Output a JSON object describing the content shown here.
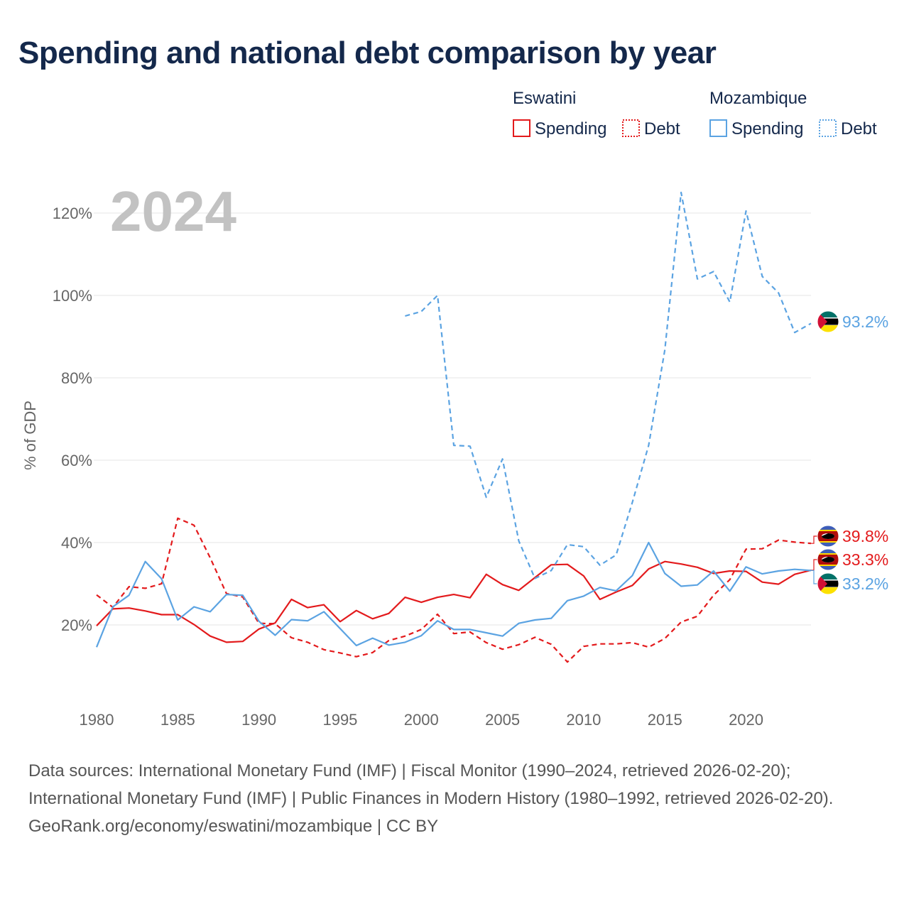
{
  "title": "Spending and national debt comparison by year",
  "year_display": "2024",
  "legend": {
    "groups": [
      {
        "country": "Eswatini",
        "color": "#e31a1c",
        "items": [
          "Spending",
          "Debt"
        ]
      },
      {
        "country": "Mozambique",
        "color": "#5ba3e2",
        "items": [
          "Spending",
          "Debt"
        ]
      }
    ]
  },
  "chart_data": {
    "type": "line",
    "ylabel": "% of GDP",
    "xlabel": "",
    "xlim": [
      1980,
      2024
    ],
    "ylim": [
      0,
      130
    ],
    "x_ticks": [
      1980,
      1985,
      1990,
      1995,
      2000,
      2005,
      2010,
      2015,
      2020
    ],
    "y_ticks": [
      20,
      40,
      60,
      80,
      100,
      120
    ],
    "y_tick_labels": [
      "20%",
      "40%",
      "60%",
      "80%",
      "100%",
      "120%"
    ],
    "series": [
      {
        "name": "Eswatini Spending",
        "country": "Eswatini",
        "metric": "Spending",
        "color": "#e31a1c",
        "dash": "solid",
        "start_year": 1980,
        "values": [
          19.8,
          23.9,
          24.1,
          23.4,
          22.5,
          22.5,
          20.1,
          17.3,
          15.8,
          16.0,
          19.0,
          20.5,
          26.2,
          24.2,
          24.9,
          20.8,
          23.5,
          21.5,
          22.8,
          26.7,
          25.5,
          26.7,
          27.4,
          26.6,
          32.3,
          29.8,
          28.4,
          31.5,
          34.6,
          34.7,
          31.9,
          26.2,
          28.0,
          29.6,
          33.6,
          35.4,
          34.8,
          34.0,
          32.5,
          33.1,
          33.0,
          30.4,
          29.9,
          32.3,
          33.3
        ],
        "end_label": "33.3%"
      },
      {
        "name": "Eswatini Debt",
        "country": "Eswatini",
        "metric": "Debt",
        "color": "#e31a1c",
        "dash": "dashed",
        "start_year": 1980,
        "values": [
          27.3,
          24.3,
          29.3,
          28.9,
          30.0,
          45.9,
          44.2,
          36.3,
          27.6,
          26.8,
          20.4,
          20.3,
          16.9,
          15.8,
          14.0,
          13.2,
          12.3,
          13.3,
          16.2,
          17.3,
          18.9,
          22.6,
          17.9,
          18.3,
          15.7,
          14.1,
          15.2,
          17.0,
          15.3,
          11.0,
          14.8,
          15.4,
          15.4,
          15.7,
          14.6,
          16.7,
          20.7,
          22.1,
          27.2,
          31.0,
          38.4,
          38.5,
          40.6,
          40.1,
          39.8
        ],
        "end_label": "39.8%"
      },
      {
        "name": "Mozambique Spending",
        "country": "Mozambique",
        "metric": "Spending",
        "color": "#5ba3e2",
        "dash": "solid",
        "start_year": 1980,
        "values": [
          14.6,
          24.4,
          27.2,
          35.4,
          31.2,
          21.2,
          24.4,
          23.2,
          27.4,
          27.2,
          20.9,
          17.5,
          21.3,
          21.0,
          23.2,
          19.1,
          15.0,
          16.8,
          15.1,
          15.8,
          17.4,
          21.0,
          18.9,
          18.9,
          18.1,
          17.3,
          20.4,
          21.2,
          21.6,
          25.9,
          27.0,
          29.1,
          28.3,
          32.0,
          40.0,
          32.5,
          29.4,
          29.7,
          33.1,
          28.2,
          34.1,
          32.4,
          33.1,
          33.5,
          33.2
        ],
        "end_label": "33.2%"
      },
      {
        "name": "Mozambique Debt",
        "country": "Mozambique",
        "metric": "Debt",
        "color": "#5ba3e2",
        "dash": "dashed",
        "start_year": 1999,
        "values": [
          95.0,
          96.1,
          100.0,
          63.6,
          63.4,
          51.0,
          60.3,
          40.4,
          31.3,
          33.2,
          39.5,
          39.0,
          34.5,
          37.0,
          49.8,
          63.6,
          86.8,
          125.0,
          104.0,
          105.8,
          98.4,
          120.5,
          104.6,
          100.6,
          91.0,
          93.2
        ],
        "end_label": "93.2%"
      }
    ]
  },
  "footer": {
    "sources": "Data sources: International Monetary Fund (IMF) | Fiscal Monitor (1990–2024, retrieved 2026-02-20); International Monetary Fund (IMF) | Public Finances in Modern History (1980–1992, retrieved 2026-02-20).",
    "credit": "GeoRank.org/economy/eswatini/mozambique | CC BY"
  }
}
